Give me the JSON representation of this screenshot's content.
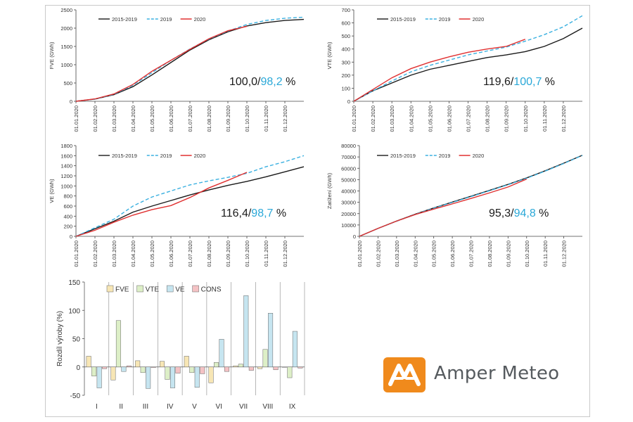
{
  "chart_data": [
    {
      "type": "line",
      "ylabel": "FVE (GWh)",
      "ylim": [
        0,
        2500
      ],
      "yticks": [
        0,
        500,
        1000,
        1500,
        2000,
        2500
      ],
      "x_labels": [
        "01.01.2020",
        "01.02.2020",
        "01.03.2020",
        "01.04.2020",
        "01.05.2020",
        "01.06.2020",
        "01.07.2020",
        "01.08.2020",
        "01.09.2020",
        "01.10.2020",
        "01.11.2020",
        "01.12.2020"
      ],
      "legend": [
        "2015-2019",
        "2019",
        "2020"
      ],
      "annotation": {
        "black_part": "100,0/",
        "blue_part": "98,2",
        "suffix": " %"
      },
      "series": [
        {
          "name": "2015-2019",
          "color": "#1a1a1a",
          "dashed": false,
          "values": [
            [
              0,
              0
            ],
            [
              1,
              60
            ],
            [
              2,
              180
            ],
            [
              3,
              400
            ],
            [
              4,
              720
            ],
            [
              5,
              1060
            ],
            [
              6,
              1400
            ],
            [
              7,
              1680
            ],
            [
              8,
              1900
            ],
            [
              9,
              2060
            ],
            [
              10,
              2150
            ],
            [
              11,
              2210
            ],
            [
              12,
              2240
            ]
          ]
        },
        {
          "name": "2019",
          "color": "#3ab0e0",
          "dashed": true,
          "values": [
            [
              0,
              0
            ],
            [
              1,
              60
            ],
            [
              2,
              190
            ],
            [
              3,
              440
            ],
            [
              4,
              780
            ],
            [
              5,
              1120
            ],
            [
              6,
              1430
            ],
            [
              7,
              1700
            ],
            [
              8,
              1920
            ],
            [
              9,
              2100
            ],
            [
              10,
              2210
            ],
            [
              11,
              2270
            ],
            [
              12,
              2300
            ]
          ]
        },
        {
          "name": "2020",
          "color": "#e03030",
          "dashed": false,
          "values": [
            [
              0,
              0
            ],
            [
              1,
              65
            ],
            [
              2,
              200
            ],
            [
              3,
              460
            ],
            [
              4,
              820
            ],
            [
              5,
              1120
            ],
            [
              6,
              1420
            ],
            [
              7,
              1710
            ],
            [
              8,
              1930
            ],
            [
              9,
              2050
            ]
          ]
        }
      ]
    },
    {
      "type": "line",
      "ylabel": "VTE (GWh)",
      "ylim": [
        0,
        700
      ],
      "yticks": [
        0,
        100,
        200,
        300,
        400,
        500,
        600,
        700
      ],
      "x_labels": [
        "01.01.2020",
        "01.02.2020",
        "01.03.2020",
        "01.04.2020",
        "01.05.2020",
        "01.06.2020",
        "01.07.2020",
        "01.08.2020",
        "01.09.2020",
        "01.10.2020",
        "01.11.2020",
        "01.12.2020"
      ],
      "legend": [
        "2015-2019",
        "2019",
        "2020"
      ],
      "annotation": {
        "black_part": "119,6/",
        "blue_part": "100,7",
        "suffix": " %"
      },
      "series": [
        {
          "name": "2015-2019",
          "color": "#1a1a1a",
          "dashed": false,
          "values": [
            [
              0,
              0
            ],
            [
              1,
              80
            ],
            [
              2,
              140
            ],
            [
              3,
              200
            ],
            [
              4,
              245
            ],
            [
              5,
              275
            ],
            [
              6,
              305
            ],
            [
              7,
              335
            ],
            [
              8,
              355
            ],
            [
              9,
              380
            ],
            [
              10,
              420
            ],
            [
              11,
              480
            ],
            [
              12,
              560
            ]
          ]
        },
        {
          "name": "2019",
          "color": "#3ab0e0",
          "dashed": true,
          "values": [
            [
              0,
              0
            ],
            [
              1,
              80
            ],
            [
              2,
              155
            ],
            [
              3,
              225
            ],
            [
              4,
              275
            ],
            [
              5,
              315
            ],
            [
              6,
              355
            ],
            [
              7,
              385
            ],
            [
              8,
              415
            ],
            [
              9,
              460
            ],
            [
              10,
              510
            ],
            [
              11,
              570
            ],
            [
              12,
              655
            ]
          ]
        },
        {
          "name": "2020",
          "color": "#e03030",
          "dashed": false,
          "values": [
            [
              0,
              0
            ],
            [
              1,
              90
            ],
            [
              2,
              180
            ],
            [
              3,
              250
            ],
            [
              4,
              300
            ],
            [
              5,
              340
            ],
            [
              6,
              375
            ],
            [
              7,
              400
            ],
            [
              8,
              420
            ],
            [
              9,
              475
            ]
          ]
        }
      ]
    },
    {
      "type": "line",
      "ylabel": "VE (GWh)",
      "ylim": [
        0,
        1800
      ],
      "yticks": [
        0,
        200,
        400,
        600,
        800,
        1000,
        1200,
        1400,
        1600,
        1800
      ],
      "x_labels": [
        "01.01.2020",
        "01.02.2020",
        "01.03.2020",
        "01.04.2020",
        "01.05.2020",
        "01.06.2020",
        "01.07.2020",
        "01.08.2020",
        "01.09.2020",
        "01.10.2020",
        "01.11.2020",
        "01.12.2020"
      ],
      "legend": [
        "2015-2019",
        "2019",
        "2020"
      ],
      "annotation": {
        "black_part": "116,4/",
        "blue_part": "98,7",
        "suffix": " %"
      },
      "series": [
        {
          "name": "2015-2019",
          "color": "#1a1a1a",
          "dashed": false,
          "values": [
            [
              0,
              0
            ],
            [
              1,
              150
            ],
            [
              2,
              300
            ],
            [
              3,
              480
            ],
            [
              4,
              600
            ],
            [
              5,
              710
            ],
            [
              6,
              820
            ],
            [
              7,
              920
            ],
            [
              8,
              1010
            ],
            [
              9,
              1090
            ],
            [
              10,
              1180
            ],
            [
              11,
              1280
            ],
            [
              12,
              1380
            ]
          ]
        },
        {
          "name": "2019",
          "color": "#3ab0e0",
          "dashed": true,
          "values": [
            [
              0,
              0
            ],
            [
              1,
              170
            ],
            [
              2,
              340
            ],
            [
              3,
              600
            ],
            [
              4,
              780
            ],
            [
              5,
              900
            ],
            [
              6,
              1020
            ],
            [
              7,
              1100
            ],
            [
              8,
              1170
            ],
            [
              9,
              1250
            ],
            [
              10,
              1380
            ],
            [
              11,
              1480
            ],
            [
              12,
              1600
            ]
          ]
        },
        {
          "name": "2020",
          "color": "#e03030",
          "dashed": false,
          "values": [
            [
              0,
              0
            ],
            [
              1,
              120
            ],
            [
              2,
              280
            ],
            [
              3,
              420
            ],
            [
              4,
              530
            ],
            [
              5,
              610
            ],
            [
              6,
              770
            ],
            [
              7,
              960
            ],
            [
              8,
              1110
            ],
            [
              9,
              1270
            ]
          ]
        }
      ]
    },
    {
      "type": "line",
      "ylabel": "Zatížení (GWh)",
      "ylim": [
        0,
        80000
      ],
      "yticks": [
        0,
        10000,
        20000,
        30000,
        40000,
        50000,
        60000,
        70000,
        80000
      ],
      "x_labels": [
        "01.01.2020",
        "01.02.2020",
        "01.03.2020",
        "01.04.2020",
        "01.05.2020",
        "01.06.2020",
        "01.07.2020",
        "01.08.2020",
        "01.09.2020",
        "01.10.2020",
        "01.11.2020",
        "01.12.2020"
      ],
      "legend": [
        "2015-2019",
        "2019",
        "2020"
      ],
      "annotation": {
        "black_part": "95,3/",
        "blue_part": "94,8",
        "suffix": " %"
      },
      "series": [
        {
          "name": "2015-2019",
          "color": "#1a1a1a",
          "dashed": false,
          "values": [
            [
              0,
              0
            ],
            [
              1,
              7000
            ],
            [
              2,
              13500
            ],
            [
              3,
              19500
            ],
            [
              4,
              25000
            ],
            [
              5,
              30200
            ],
            [
              6,
              35300
            ],
            [
              7,
              40500
            ],
            [
              8,
              45800
            ],
            [
              9,
              51500
            ],
            [
              10,
              57800
            ],
            [
              11,
              64500
            ],
            [
              12,
              71500
            ]
          ]
        },
        {
          "name": "2019",
          "color": "#3ab0e0",
          "dashed": true,
          "values": [
            [
              0,
              0
            ],
            [
              1,
              6900
            ],
            [
              2,
              13300
            ],
            [
              3,
              19300
            ],
            [
              4,
              24800
            ],
            [
              5,
              29900
            ],
            [
              6,
              35000
            ],
            [
              7,
              40200
            ],
            [
              8,
              45500
            ],
            [
              9,
              51200
            ],
            [
              10,
              57500
            ],
            [
              11,
              64200
            ],
            [
              12,
              71300
            ]
          ]
        },
        {
          "name": "2020",
          "color": "#e03030",
          "dashed": false,
          "values": [
            [
              0,
              0
            ],
            [
              1,
              7000
            ],
            [
              2,
              13400
            ],
            [
              3,
              19200
            ],
            [
              4,
              24000
            ],
            [
              5,
              28600
            ],
            [
              6,
              33400
            ],
            [
              7,
              38300
            ],
            [
              8,
              43500
            ],
            [
              9,
              50500
            ]
          ]
        }
      ]
    },
    {
      "type": "bar",
      "ylabel": "Rozdíl výroby (%)",
      "ylim": [
        -50,
        150
      ],
      "yticks": [
        -50,
        0,
        50,
        100,
        150
      ],
      "categories": [
        "I",
        "II",
        "III",
        "IV",
        "V",
        "VI",
        "VII",
        "VIII",
        "IX"
      ],
      "series": [
        {
          "name": "FVE",
          "color": "#f7e6b5",
          "values": [
            19,
            -23,
            11,
            10,
            19,
            -28,
            2,
            -3,
            0
          ]
        },
        {
          "name": "VTE",
          "color": "#ddefc7",
          "values": [
            -16,
            82,
            -10,
            -22,
            -10,
            8,
            5,
            31,
            -19
          ]
        },
        {
          "name": "VE",
          "color": "#c6e5f0",
          "values": [
            -37,
            -8,
            -38,
            -37,
            -36,
            49,
            126,
            95,
            63
          ]
        },
        {
          "name": "CONS",
          "color": "#f4c2c4",
          "values": [
            -3,
            2,
            -1,
            -11,
            -12,
            -8,
            -6,
            -5,
            -2
          ]
        }
      ]
    }
  ],
  "logo": {
    "text": "Amper Meteo",
    "color": "#f08a1c"
  }
}
